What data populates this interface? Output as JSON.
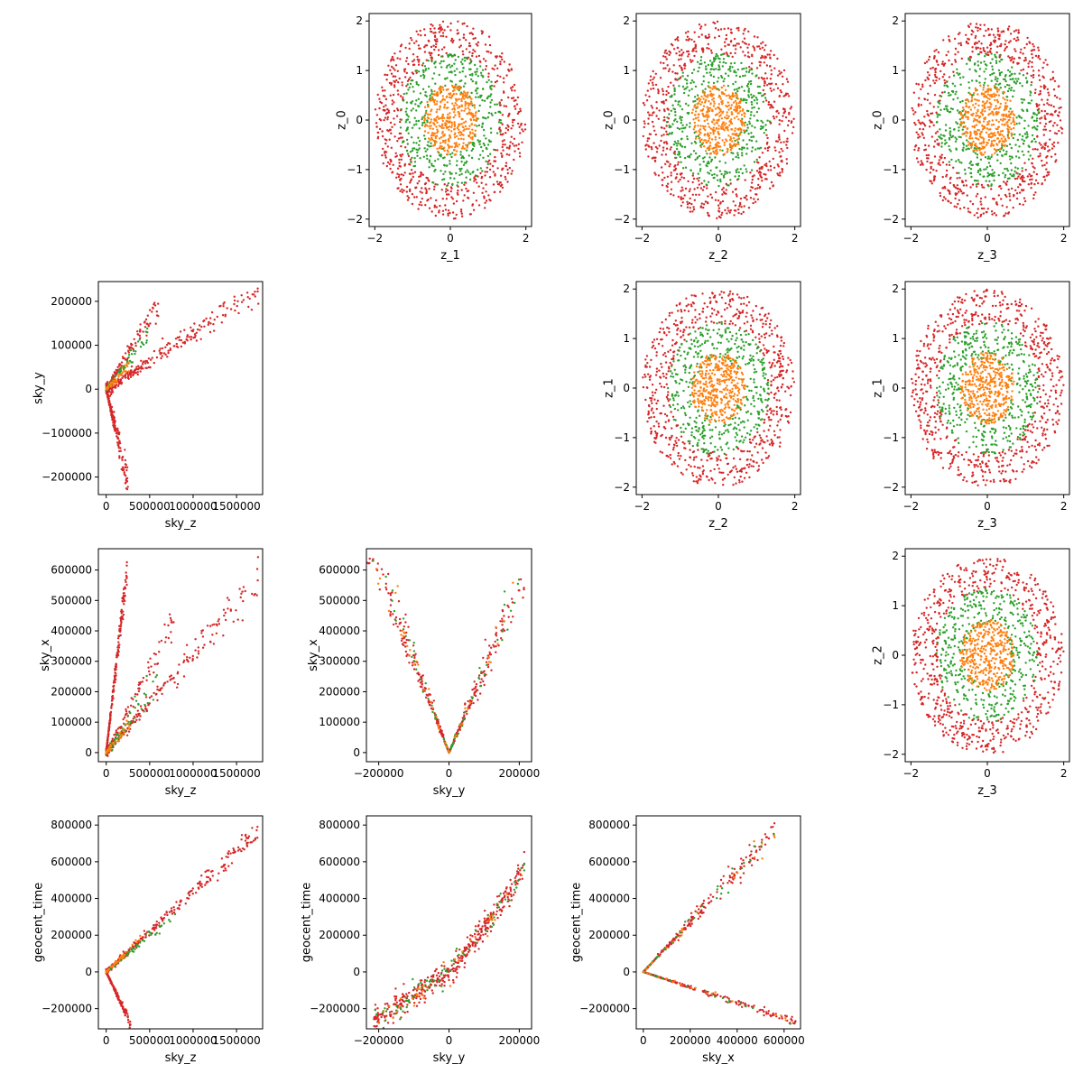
{
  "chart_data": {
    "type": "scatter",
    "layout": "lower-and-upper triangle pair plot, 4x4 grid, diagonal left empty",
    "colors": {
      "red": "#d62728",
      "green": "#2ca02c",
      "orange": "#ff7f0e"
    },
    "panels": [
      {
        "id": "z1-z0",
        "xlabel": "z_1",
        "ylabel": "z_0",
        "kind": "disk",
        "xlim": [
          -2.15,
          2.15
        ],
        "ylim": [
          -2.15,
          2.15
        ],
        "xticks": [
          {
            "v": -2,
            "t": "−2"
          },
          {
            "v": 0,
            "t": "0"
          },
          {
            "v": 2,
            "t": "2"
          }
        ],
        "yticks": [
          {
            "v": -2,
            "t": "−2"
          },
          {
            "v": -1,
            "t": "−1"
          },
          {
            "v": 0,
            "t": "0"
          },
          {
            "v": 1,
            "t": "1"
          },
          {
            "v": 2,
            "t": "2"
          }
        ]
      },
      {
        "id": "z2-z0",
        "xlabel": "z_2",
        "ylabel": "z_0",
        "kind": "disk",
        "xlim": [
          -2.15,
          2.15
        ],
        "ylim": [
          -2.15,
          2.15
        ],
        "xticks": [
          {
            "v": -2,
            "t": "−2"
          },
          {
            "v": 0,
            "t": "0"
          },
          {
            "v": 2,
            "t": "2"
          }
        ],
        "yticks": [
          {
            "v": -2,
            "t": "−2"
          },
          {
            "v": -1,
            "t": "−1"
          },
          {
            "v": 0,
            "t": "0"
          },
          {
            "v": 1,
            "t": "1"
          },
          {
            "v": 2,
            "t": "2"
          }
        ]
      },
      {
        "id": "z3-z0",
        "xlabel": "z_3",
        "ylabel": "z_0",
        "kind": "disk",
        "xlim": [
          -2.15,
          2.15
        ],
        "ylim": [
          -2.15,
          2.15
        ],
        "xticks": [
          {
            "v": -2,
            "t": "−2"
          },
          {
            "v": 0,
            "t": "0"
          },
          {
            "v": 2,
            "t": "2"
          }
        ],
        "yticks": [
          {
            "v": -2,
            "t": "−2"
          },
          {
            "v": -1,
            "t": "−1"
          },
          {
            "v": 0,
            "t": "0"
          },
          {
            "v": 1,
            "t": "1"
          },
          {
            "v": 2,
            "t": "2"
          }
        ]
      },
      {
        "id": "skyz-skyy",
        "xlabel": "sky_z",
        "ylabel": "sky_y",
        "kind": "skyz_skyy",
        "xlim": [
          -90000,
          1800000
        ],
        "ylim": [
          -240000,
          245000
        ],
        "xticks": [
          {
            "v": 0,
            "t": "0"
          },
          {
            "v": 500000,
            "t": "500000"
          },
          {
            "v": 1000000,
            "t": "1000000"
          },
          {
            "v": 1500000,
            "t": "1500000"
          }
        ],
        "yticks": [
          {
            "v": -200000,
            "t": "−200000"
          },
          {
            "v": -100000,
            "t": "−100000"
          },
          {
            "v": 0,
            "t": "0"
          },
          {
            "v": 100000,
            "t": "100000"
          },
          {
            "v": 200000,
            "t": "200000"
          }
        ]
      },
      {
        "id": "z2-z1",
        "xlabel": "z_2",
        "ylabel": "z_1",
        "kind": "disk",
        "xlim": [
          -2.15,
          2.15
        ],
        "ylim": [
          -2.15,
          2.15
        ],
        "xticks": [
          {
            "v": -2,
            "t": "−2"
          },
          {
            "v": 0,
            "t": "0"
          },
          {
            "v": 2,
            "t": "2"
          }
        ],
        "yticks": [
          {
            "v": -2,
            "t": "−2"
          },
          {
            "v": -1,
            "t": "−1"
          },
          {
            "v": 0,
            "t": "0"
          },
          {
            "v": 1,
            "t": "1"
          },
          {
            "v": 2,
            "t": "2"
          }
        ]
      },
      {
        "id": "z3-z1",
        "xlabel": "z_3",
        "ylabel": "z_1",
        "kind": "disk",
        "xlim": [
          -2.15,
          2.15
        ],
        "ylim": [
          -2.15,
          2.15
        ],
        "xticks": [
          {
            "v": -2,
            "t": "−2"
          },
          {
            "v": 0,
            "t": "0"
          },
          {
            "v": 2,
            "t": "2"
          }
        ],
        "yticks": [
          {
            "v": -2,
            "t": "−2"
          },
          {
            "v": -1,
            "t": "−1"
          },
          {
            "v": 0,
            "t": "0"
          },
          {
            "v": 1,
            "t": "1"
          },
          {
            "v": 2,
            "t": "2"
          }
        ]
      },
      {
        "id": "skyz-skyx",
        "xlabel": "sky_z",
        "ylabel": "sky_x",
        "kind": "skyz_skyx",
        "xlim": [
          -90000,
          1800000
        ],
        "ylim": [
          -30000,
          670000
        ],
        "xticks": [
          {
            "v": 0,
            "t": "0"
          },
          {
            "v": 500000,
            "t": "500000"
          },
          {
            "v": 1000000,
            "t": "1000000"
          },
          {
            "v": 1500000,
            "t": "1500000"
          }
        ],
        "yticks": [
          {
            "v": 0,
            "t": "0"
          },
          {
            "v": 100000,
            "t": "100000"
          },
          {
            "v": 200000,
            "t": "200000"
          },
          {
            "v": 300000,
            "t": "300000"
          },
          {
            "v": 400000,
            "t": "400000"
          },
          {
            "v": 500000,
            "t": "500000"
          },
          {
            "v": 600000,
            "t": "600000"
          }
        ]
      },
      {
        "id": "skyy-skyx",
        "xlabel": "sky_y",
        "ylabel": "sky_x",
        "kind": "skyy_skyx",
        "xlim": [
          -235000,
          235000
        ],
        "ylim": [
          -30000,
          670000
        ],
        "xticks": [
          {
            "v": -200000,
            "t": "−200000"
          },
          {
            "v": 0,
            "t": "0"
          },
          {
            "v": 200000,
            "t": "200000"
          }
        ],
        "yticks": [
          {
            "v": 0,
            "t": "0"
          },
          {
            "v": 100000,
            "t": "100000"
          },
          {
            "v": 200000,
            "t": "200000"
          },
          {
            "v": 300000,
            "t": "300000"
          },
          {
            "v": 400000,
            "t": "400000"
          },
          {
            "v": 500000,
            "t": "500000"
          },
          {
            "v": 600000,
            "t": "600000"
          }
        ]
      },
      {
        "id": "z3-z2",
        "xlabel": "z_3",
        "ylabel": "z_2",
        "kind": "disk",
        "xlim": [
          -2.15,
          2.15
        ],
        "ylim": [
          -2.15,
          2.15
        ],
        "xticks": [
          {
            "v": -2,
            "t": "−2"
          },
          {
            "v": 0,
            "t": "0"
          },
          {
            "v": 2,
            "t": "2"
          }
        ],
        "yticks": [
          {
            "v": -2,
            "t": "−2"
          },
          {
            "v": -1,
            "t": "−1"
          },
          {
            "v": 0,
            "t": "0"
          },
          {
            "v": 1,
            "t": "1"
          },
          {
            "v": 2,
            "t": "2"
          }
        ]
      },
      {
        "id": "skyz-time",
        "xlabel": "sky_z",
        "ylabel": "geocent_time",
        "kind": "skyz_time",
        "xlim": [
          -90000,
          1800000
        ],
        "ylim": [
          -310000,
          850000
        ],
        "xticks": [
          {
            "v": 0,
            "t": "0"
          },
          {
            "v": 500000,
            "t": "500000"
          },
          {
            "v": 1000000,
            "t": "1000000"
          },
          {
            "v": 1500000,
            "t": "1500000"
          }
        ],
        "yticks": [
          {
            "v": -200000,
            "t": "−200000"
          },
          {
            "v": 0,
            "t": "0"
          },
          {
            "v": 200000,
            "t": "200000"
          },
          {
            "v": 400000,
            "t": "400000"
          },
          {
            "v": 600000,
            "t": "600000"
          },
          {
            "v": 800000,
            "t": "800000"
          }
        ]
      },
      {
        "id": "skyy-time",
        "xlabel": "sky_y",
        "ylabel": "geocent_time",
        "kind": "skyy_time",
        "xlim": [
          -235000,
          235000
        ],
        "ylim": [
          -310000,
          850000
        ],
        "xticks": [
          {
            "v": -200000,
            "t": "−200000"
          },
          {
            "v": 0,
            "t": "0"
          },
          {
            "v": 200000,
            "t": "200000"
          }
        ],
        "yticks": [
          {
            "v": -200000,
            "t": "−200000"
          },
          {
            "v": 0,
            "t": "0"
          },
          {
            "v": 200000,
            "t": "200000"
          },
          {
            "v": 400000,
            "t": "400000"
          },
          {
            "v": 600000,
            "t": "600000"
          },
          {
            "v": 800000,
            "t": "800000"
          }
        ]
      },
      {
        "id": "skyx-time",
        "xlabel": "sky_x",
        "ylabel": "geocent_time",
        "kind": "skyx_time",
        "xlim": [
          -30000,
          670000
        ],
        "ylim": [
          -310000,
          850000
        ],
        "xticks": [
          {
            "v": 0,
            "t": "0"
          },
          {
            "v": 200000,
            "t": "200000"
          },
          {
            "v": 400000,
            "t": "400000"
          },
          {
            "v": 600000,
            "t": "600000"
          }
        ],
        "yticks": [
          {
            "v": -200000,
            "t": "−200000"
          },
          {
            "v": 0,
            "t": "0"
          },
          {
            "v": 200000,
            "t": "200000"
          },
          {
            "v": 400000,
            "t": "400000"
          },
          {
            "v": 600000,
            "t": "600000"
          },
          {
            "v": 800000,
            "t": "800000"
          }
        ]
      }
    ]
  }
}
